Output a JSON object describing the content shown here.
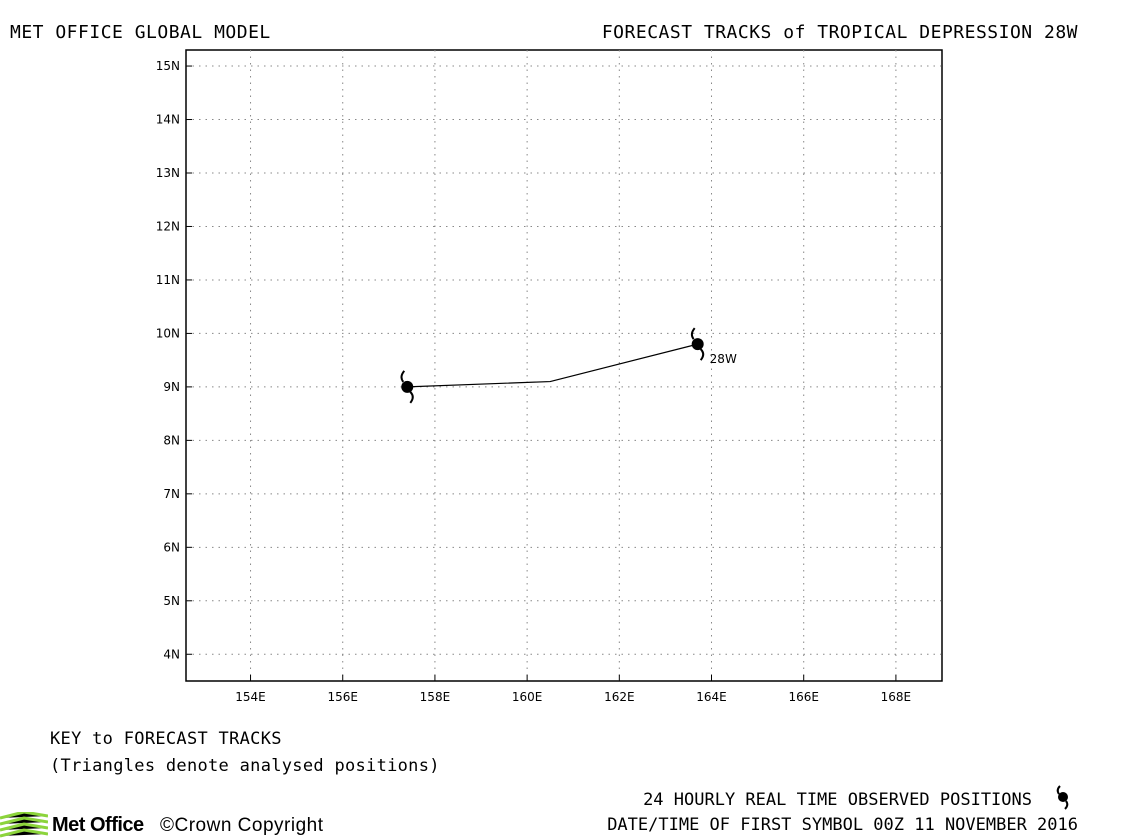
{
  "header": {
    "left_title": "MET OFFICE GLOBAL MODEL",
    "right_title": "FORECAST TRACKS of TROPICAL DEPRESSION 28W"
  },
  "chart_data": {
    "type": "map-track",
    "x_ticks": [
      "154E",
      "156E",
      "158E",
      "160E",
      "162E",
      "164E",
      "166E",
      "168E"
    ],
    "y_ticks": [
      "4N",
      "5N",
      "6N",
      "7N",
      "8N",
      "9N",
      "10N",
      "11N",
      "12N",
      "13N",
      "14N",
      "15N"
    ],
    "lon_range": [
      152.6,
      169.0
    ],
    "lat_range": [
      3.5,
      15.3
    ],
    "grid": "dotted",
    "track": {
      "points": [
        {
          "lon": 163.7,
          "lat": 9.8
        },
        {
          "lon": 160.5,
          "lat": 9.1
        },
        {
          "lon": 157.4,
          "lat": 9.0
        }
      ],
      "symbols_at": [
        0,
        2
      ],
      "label": "28W"
    }
  },
  "key": {
    "title": "KEY to FORECAST TRACKS",
    "note": "(Triangles denote analysed positions)"
  },
  "footer": {
    "observed": "24 HOURLY REAL TIME OBSERVED POSITIONS",
    "datetime": "DATE/TIME OF FIRST SYMBOL 00Z 11 NOVEMBER 2016",
    "logo": "Met Office",
    "copyright": "©Crown Copyright"
  },
  "colors": {
    "logo_green": "#8cd43c",
    "ink": "#000000"
  }
}
